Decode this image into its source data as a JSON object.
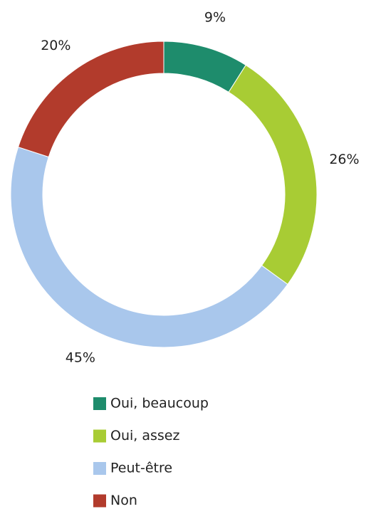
{
  "chart_data": {
    "type": "donut",
    "categories": [
      "Oui, beaucoup",
      "Oui, assez",
      "Peut-être",
      "Non"
    ],
    "values": [
      9,
      26,
      45,
      20
    ],
    "value_labels": [
      "9%",
      "26%",
      "45%",
      "20%"
    ],
    "colors": [
      "#1e8c6c",
      "#a8cc34",
      "#a9c7ec",
      "#b23b2c"
    ],
    "legend": "bottom"
  }
}
